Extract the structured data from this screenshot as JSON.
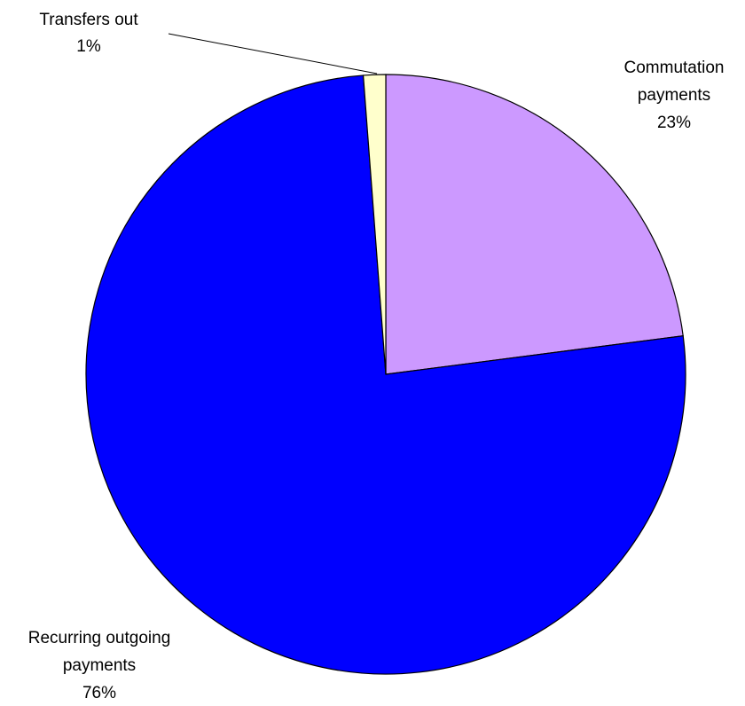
{
  "chart_data": {
    "type": "pie",
    "slices": [
      {
        "name": "Commutation payments",
        "label_lines": [
          "Commutation",
          "payments"
        ],
        "percent_label": "23%",
        "value": 23,
        "color": "#cc99ff"
      },
      {
        "name": "Recurring outgoing payments",
        "label_lines": [
          "Recurring outgoing",
          "payments"
        ],
        "percent_label": "76%",
        "value": 76,
        "color": "#0000ff"
      },
      {
        "name": "Transfers out",
        "label_lines": [
          "Transfers out"
        ],
        "percent_label": "1%",
        "value": 1.2,
        "color": "#ffffcc"
      }
    ],
    "start_angle_degrees": 0,
    "direction": "clockwise",
    "legend": "none"
  }
}
